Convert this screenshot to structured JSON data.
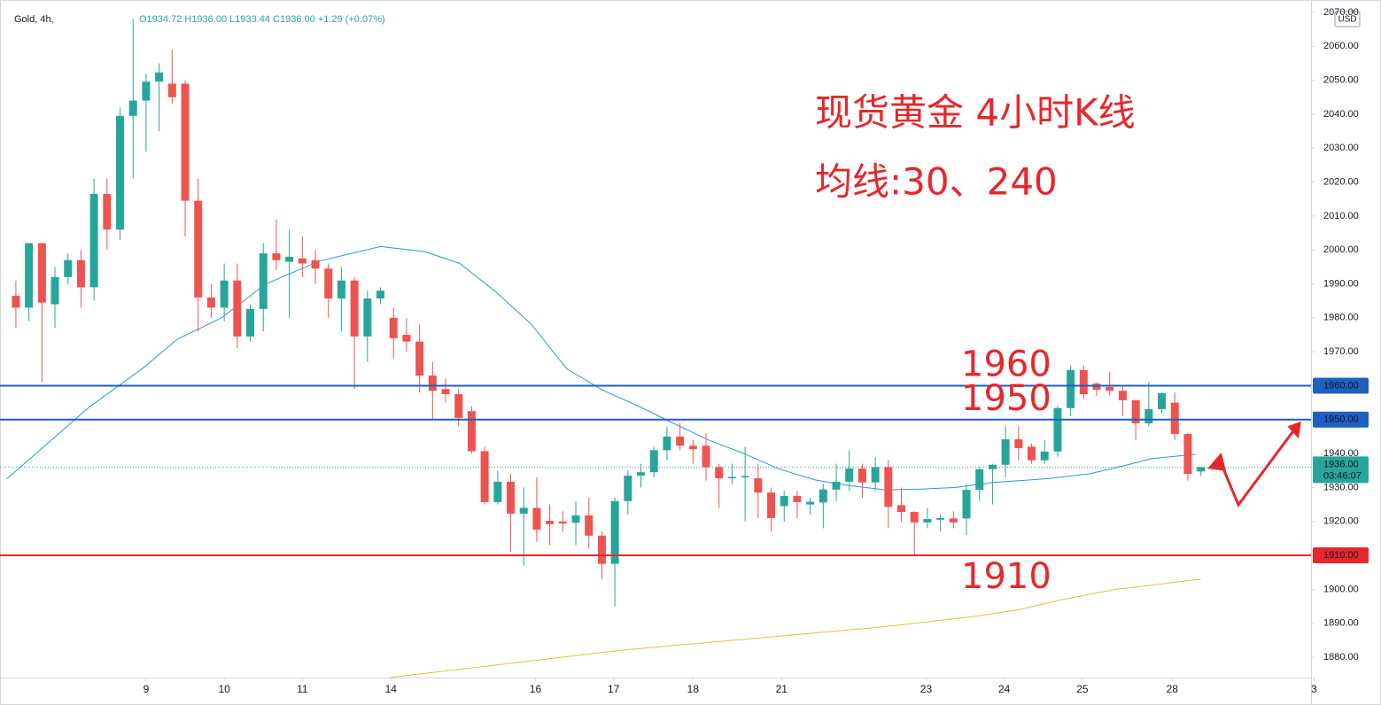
{
  "chart_data": {
    "type": "candlestick",
    "symbol": "Gold, 4h,",
    "ohlc_legend": "O1934.72  H1936.00  L1933.44  C1936.00  +1.29 (+0.07%)",
    "currency": "USD",
    "title": "现货黄金 4小时K线",
    "subtitle": "均线:30、240",
    "up_color": "#26a69a",
    "down_color": "#ef5350",
    "open": [
      1986.5,
      1983,
      2002,
      1984,
      1992,
      1997,
      1989,
      2016.5,
      2006,
      2039.5,
      2044,
      2049.6,
      2049,
      2049,
      2014.5,
      1986,
      1983,
      1991,
      1974.5,
      1982.6,
      1999,
      1996.5,
      1997.5,
      1997,
      1994.5,
      1985.7,
      1991,
      1974.5,
      1985.7,
      1980,
      1975,
      1973,
      1963,
      1959,
      1957.5,
      1952.5,
      1940.7,
      1925.7,
      1931.7,
      1922.3,
      1924,
      1920.2,
      1920,
      1919.6,
      1921.8,
      1915.8,
      1907.5,
      1926,
      1933.5,
      1934.5,
      1941,
      1945,
      1942.3,
      1942.3,
      1936,
      1932.7,
      1933,
      1932.7,
      1928.5,
      1924.5,
      1927.5,
      1925,
      1925.6,
      1929.4,
      1931.7,
      1935.6,
      1931.5,
      1936,
      1924.8,
      1922.8,
      1919.7,
      1920.5,
      1920.9,
      1920.9,
      1929.3,
      1935.4,
      1936.7,
      1944.2,
      1942,
      1938,
      1940.6,
      1953.4,
      1964.6,
      1960.6,
      1959.6,
      1958.5,
      1955.7,
      1948.9,
      1953.1,
      1955,
      1945.8,
      1934.72
    ],
    "high": [
      1991,
      2002,
      2002,
      1995,
      1999,
      2000,
      2021,
      2021,
      2042,
      2068,
      2052,
      2055,
      2059,
      2050,
      2021,
      1990,
      1996,
      1996,
      1984,
      2002,
      2009,
      2006,
      2004,
      2000,
      1996,
      1995,
      1992,
      1988,
      1989,
      1983,
      1980,
      1978,
      1967,
      1962,
      1959,
      1954,
      1942,
      1935,
      1934,
      1930,
      1933,
      1925,
      1923,
      1926,
      1927,
      1917,
      1927,
      1935,
      1937,
      1942,
      1948,
      1949,
      1944,
      1946,
      1937,
      1937,
      1942,
      1937,
      1930,
      1929,
      1929,
      1927,
      1931,
      1937,
      1941,
      1937,
      1939,
      1938,
      1930,
      1923,
      1924,
      1922,
      1923,
      1931,
      1936,
      1937,
      1948,
      1948,
      1943,
      1944,
      1954,
      1966,
      1966,
      1961,
      1964,
      1960,
      1956,
      1961,
      1958,
      1958,
      1946,
      1936
    ],
    "low": [
      1977,
      1979,
      1961,
      1977,
      1990,
      1983,
      1985,
      2000,
      2003,
      2021,
      2029,
      2035,
      2043,
      2004,
      1976,
      1980,
      1979,
      1971,
      1973,
      1976,
      1994,
      1980,
      1992,
      1990,
      1980,
      1976,
      1959,
      1967,
      1984,
      1968,
      1970,
      1958,
      1950,
      1955,
      1948,
      1940,
      1925,
      1925,
      1911,
      1907,
      1914,
      1913,
      1917,
      1913,
      1912,
      1903,
      1895,
      1922,
      1930,
      1933,
      1938,
      1941,
      1937,
      1932,
      1924,
      1931,
      1920,
      1921,
      1917,
      1920,
      1921,
      1922,
      1918,
      1926,
      1929,
      1927,
      1929,
      1918,
      1920,
      1910,
      1918,
      1917,
      1918,
      1916,
      1926,
      1925,
      1933,
      1938,
      1937,
      1937,
      1939,
      1951,
      1956,
      1957,
      1957,
      1951,
      1944,
      1948,
      1952,
      1944,
      1932,
      1933.44
    ],
    "close": [
      1983,
      2002,
      1984.5,
      1992,
      1997,
      1989,
      2016.5,
      2006,
      2039.5,
      2044,
      2049.6,
      2052.3,
      2045,
      2014.5,
      1986,
      1983,
      1991,
      1974.5,
      1982.6,
      1999,
      1997,
      1998,
      1996,
      1994.5,
      1985.7,
      1991,
      1974.5,
      1985.7,
      1988,
      1974,
      1973,
      1963,
      1958.5,
      1957.5,
      1950.5,
      1940.7,
      1925.7,
      1931.7,
      1922.3,
      1924,
      1917.6,
      1919.2,
      1919.4,
      1921.8,
      1915.8,
      1907.5,
      1926,
      1933.5,
      1934.5,
      1941,
      1945,
      1942.3,
      1941.3,
      1936,
      1932.7,
      1933.1,
      1933.4,
      1928.5,
      1921,
      1927.5,
      1925.7,
      1925.8,
      1929.4,
      1931.7,
      1935.6,
      1931.5,
      1936,
      1924.3,
      1922.8,
      1919.7,
      1920.7,
      1921,
      1919.7,
      1929.3,
      1935.4,
      1936.7,
      1944.2,
      1941.6,
      1938,
      1940.6,
      1953.4,
      1964.6,
      1957.5,
      1958.8,
      1958.5,
      1955.7,
      1948.9,
      1953.1,
      1957.8,
      1945.8,
      1934,
      1936
    ],
    "moving_averages": [
      {
        "color": "#2196f3",
        "x": [
          -0.7,
          5.6,
          9.7,
          12.4,
          15.8,
          19.2,
          23.3,
          28,
          31.4,
          34.1,
          36.9,
          39.6,
          42.3,
          45,
          47.8,
          50.5,
          53.2,
          55.9,
          58.6,
          61.4,
          64.1,
          66.8,
          69.5,
          72.2,
          75,
          79,
          82.4,
          85.2,
          87.2,
          90.6
        ],
        "values": [
          1932.5,
          1953.6,
          1965,
          1973.7,
          1980,
          1990,
          1996.7,
          2001,
          1999.5,
          1996,
          1987.5,
          1978,
          1965,
          1958.8,
          1954,
          1948.9,
          1944,
          1940,
          1935.5,
          1932.2,
          1930.5,
          1929.3,
          1929.5,
          1930,
          1931.5,
          1932.5,
          1934,
          1936.5,
          1938.5,
          1939.8
        ]
      },
      {
        "color": "#f5b82e",
        "x": [
          28.7,
          46.4,
          66.8,
          73.6,
          77,
          80.4,
          84.5,
          91
        ],
        "values": [
          1874,
          1882,
          1889,
          1892,
          1894,
          1897,
          1900,
          1903
        ]
      }
    ],
    "levels": [
      {
        "value": 1960,
        "label": "1960.00",
        "annotation": "1960",
        "color": "#1e5fc2"
      },
      {
        "value": 1950,
        "label": "1950.00",
        "annotation": "1950",
        "color": "#1e5fc2"
      },
      {
        "value": 1910,
        "label": "1910.00",
        "annotation": "1910",
        "color": "#e8262a"
      }
    ],
    "last_price": {
      "value": 1936,
      "label": "1936.00",
      "countdown": "03:46:07",
      "color": "#26a69a"
    },
    "xlim": [
      -1.22,
      99.46
    ],
    "xticks": [
      {
        "value": 10,
        "label": "9"
      },
      {
        "value": 16,
        "label": "10"
      },
      {
        "value": 22,
        "label": "11"
      },
      {
        "value": 28.8,
        "label": "14"
      },
      {
        "value": 39.9,
        "label": "16"
      },
      {
        "value": 45.9,
        "label": "17"
      },
      {
        "value": 52,
        "label": "18"
      },
      {
        "value": 58.8,
        "label": "21"
      },
      {
        "value": 69.9,
        "label": "23"
      },
      {
        "value": 75.9,
        "label": "24"
      },
      {
        "value": 81.9,
        "label": "25"
      },
      {
        "value": 88.8,
        "label": "28"
      },
      {
        "value": 99.7,
        "label": "3"
      }
    ],
    "ylim": [
      1874,
      2073.65
    ],
    "yticks": [
      {
        "value": 1880,
        "label": "1880.00"
      },
      {
        "value": 1890,
        "label": "1890.00"
      },
      {
        "value": 1900,
        "label": "1900.00"
      },
      {
        "value": 1910,
        "label": "1910.00"
      },
      {
        "value": 1920,
        "label": "1920.00"
      },
      {
        "value": 1930,
        "label": "1930.00"
      },
      {
        "value": 1940,
        "label": "1940.00"
      },
      {
        "value": 1950,
        "label": "1950.00"
      },
      {
        "value": 1960,
        "label": "1960.00"
      },
      {
        "value": 1970,
        "label": "1970.00"
      },
      {
        "value": 1980,
        "label": "1980.00"
      },
      {
        "value": 1990,
        "label": "1990.00"
      },
      {
        "value": 2000,
        "label": "2000.00"
      },
      {
        "value": 2010,
        "label": "2010.00"
      },
      {
        "value": 2020,
        "label": "2020.00"
      },
      {
        "value": 2030,
        "label": "2030.00"
      },
      {
        "value": 2040,
        "label": "2040.00"
      },
      {
        "value": 2050,
        "label": "2050.00"
      },
      {
        "value": 2060,
        "label": "2060.00"
      },
      {
        "value": 2070,
        "label": "2070.00"
      }
    ]
  }
}
